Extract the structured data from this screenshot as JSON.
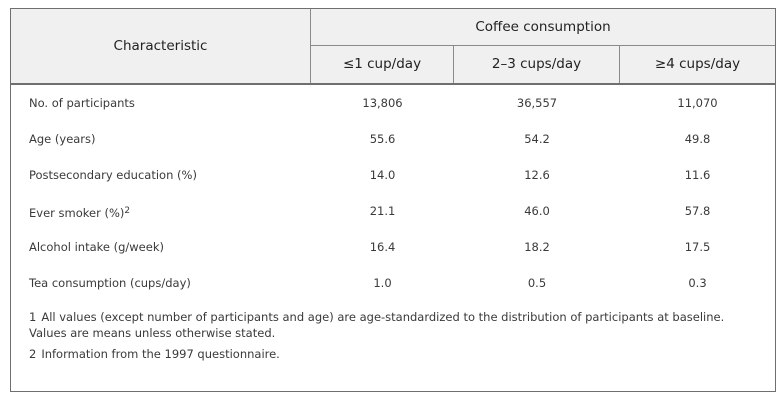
{
  "header": {
    "characteristic": "Characteristic",
    "group": "Coffee consumption",
    "columns": [
      "≤1 cup/day",
      "2–3 cups/day",
      "≥4 cups/day"
    ]
  },
  "rows": [
    {
      "label": "No. of participants",
      "sup": "",
      "values": [
        "13,806",
        "36,557",
        "11,070"
      ]
    },
    {
      "label": "Age (years)",
      "sup": "",
      "values": [
        "55.6",
        "54.2",
        "49.8"
      ]
    },
    {
      "label": "Postsecondary education (%)",
      "sup": "",
      "values": [
        "14.0",
        "12.6",
        "11.6"
      ]
    },
    {
      "label": "Ever smoker (%)",
      "sup": "2",
      "values": [
        "21.1",
        "46.0",
        "57.8"
      ]
    },
    {
      "label": "Alcohol intake (g/week)",
      "sup": "",
      "values": [
        "16.4",
        "18.2",
        "17.5"
      ]
    },
    {
      "label": "Tea consumption (cups/day)",
      "sup": "",
      "values": [
        "1.0",
        "0.5",
        "0.3"
      ]
    }
  ],
  "notes": [
    {
      "num": "1",
      "text": "All values (except number of participants and age) are age-standardized to the distribution of participants at baseline. Values are means unless otherwise stated."
    },
    {
      "num": "2",
      "text": "Information from the 1997 questionnaire."
    }
  ]
}
